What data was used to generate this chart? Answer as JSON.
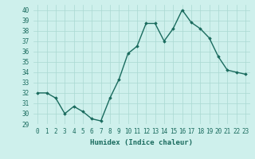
{
  "x": [
    0,
    1,
    2,
    3,
    4,
    5,
    6,
    7,
    8,
    9,
    10,
    11,
    12,
    13,
    14,
    15,
    16,
    17,
    18,
    19,
    20,
    21,
    22,
    23
  ],
  "y": [
    32.0,
    32.0,
    31.5,
    30.0,
    30.7,
    30.2,
    29.5,
    29.3,
    31.5,
    33.3,
    35.8,
    36.5,
    38.7,
    38.7,
    37.0,
    38.2,
    40.0,
    38.8,
    38.2,
    37.3,
    35.5,
    34.2,
    34.0,
    33.8
  ],
  "line_color": "#1a6b5e",
  "marker": "D",
  "marker_size": 1.8,
  "bg_color": "#cef0ec",
  "grid_color": "#aad8d2",
  "xlabel": "Humidex (Indice chaleur)",
  "ylim": [
    29,
    40.5
  ],
  "yticks": [
    29,
    30,
    31,
    32,
    33,
    34,
    35,
    36,
    37,
    38,
    39,
    40
  ],
  "xticks": [
    0,
    1,
    2,
    3,
    4,
    5,
    6,
    7,
    8,
    9,
    10,
    11,
    12,
    13,
    14,
    15,
    16,
    17,
    18,
    19,
    20,
    21,
    22,
    23
  ],
  "xlabel_fontsize": 6.5,
  "tick_fontsize": 5.5,
  "line_width": 1.0
}
